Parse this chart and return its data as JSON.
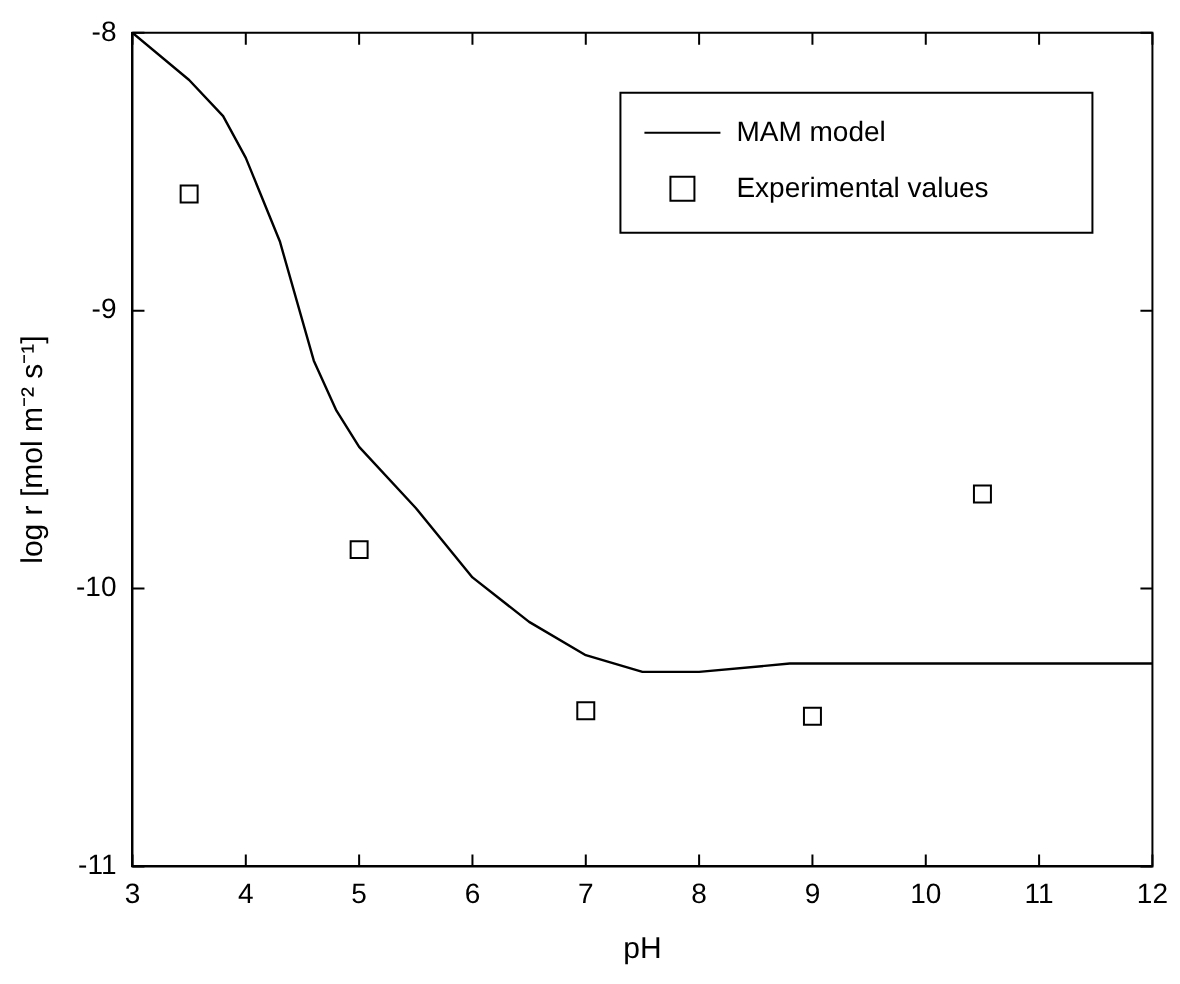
{
  "chart_data": {
    "type": "line",
    "xlabel": "pH",
    "ylabel": "log r [mol m⁻² s⁻¹]",
    "xlim": [
      3,
      12
    ],
    "xticks": [
      3,
      4,
      5,
      6,
      7,
      8,
      9,
      10,
      11,
      12
    ],
    "ylim": [
      -11,
      -8
    ],
    "yticks": [
      -11,
      -10,
      -9,
      -8
    ],
    "grid": false,
    "legend": "top right",
    "series": [
      {
        "name": "MAM model",
        "color": "#000000",
        "marker": "none",
        "line_style": "solid",
        "x": [
          3,
          3.5,
          3.8,
          4,
          4.3,
          4.6,
          4.8,
          5,
          5.5,
          6,
          6.5,
          7,
          7.5,
          8,
          8.8,
          10,
          12
        ],
        "values": [
          -8,
          -8.17,
          -8.3,
          -8.45,
          -8.75,
          -9.18,
          -9.36,
          -9.49,
          -9.71,
          -9.96,
          -10.12,
          -10.24,
          -10.3,
          -10.3,
          -10.27,
          -10.27,
          -10.27
        ]
      },
      {
        "name": "Experimental values",
        "type": "scatter",
        "color": "#000000",
        "marker": "square",
        "x": [
          3.5,
          5,
          7,
          9,
          10.5
        ],
        "values": [
          -8.58,
          -9.86,
          -10.44,
          -10.46,
          -9.66
        ]
      }
    ]
  }
}
